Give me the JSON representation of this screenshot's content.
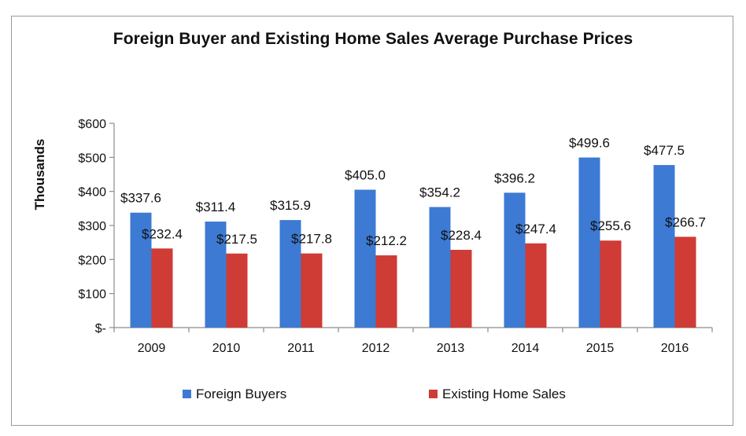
{
  "chart_data": {
    "type": "bar",
    "title": "Foreign Buyer and Existing Home Sales Average Purchase Prices",
    "xlabel": "",
    "ylabel": "Thousands",
    "categories": [
      "2009",
      "2010",
      "2011",
      "2012",
      "2013",
      "2014",
      "2015",
      "2016"
    ],
    "series": [
      {
        "name": "Foreign Buyers",
        "color": "#3d7ad3",
        "values": [
          337.6,
          311.4,
          315.9,
          405.0,
          354.2,
          396.2,
          499.6,
          477.5
        ],
        "labels": [
          "$337.6",
          "$311.4",
          "$315.9",
          "$405.0",
          "$354.2",
          "$396.2",
          "$499.6",
          "$477.5"
        ]
      },
      {
        "name": "Existing Home Sales",
        "color": "#cf3b35",
        "values": [
          232.4,
          217.5,
          217.8,
          212.2,
          228.4,
          247.4,
          255.6,
          266.7
        ],
        "labels": [
          "$232.4",
          "$217.5",
          "$217.8",
          "$212.2",
          "$228.4",
          "$247.4",
          "$255.6",
          "$266.7"
        ]
      }
    ],
    "ylim": [
      0,
      600
    ],
    "yticks": [
      0,
      100,
      200,
      300,
      400,
      500,
      600
    ],
    "ytick_labels": [
      "$-",
      "$100",
      "$200",
      "$300",
      "$400",
      "$500",
      "$600"
    ],
    "grid": false,
    "legend": "bottom"
  }
}
